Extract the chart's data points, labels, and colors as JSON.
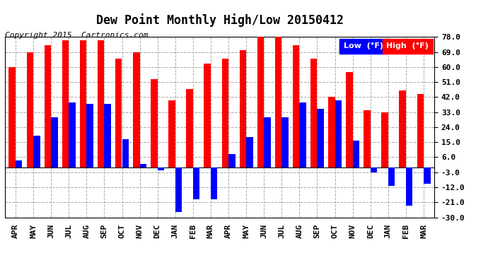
{
  "title": "Dew Point Monthly High/Low 20150412",
  "copyright": "Copyright 2015  Cartronics.com",
  "months": [
    "APR",
    "MAY",
    "JUN",
    "JUL",
    "AUG",
    "SEP",
    "OCT",
    "NOV",
    "DEC",
    "JAN",
    "FEB",
    "MAR",
    "APR",
    "MAY",
    "JUN",
    "JUL",
    "AUG",
    "SEP",
    "OCT",
    "NOV",
    "DEC",
    "JAN",
    "FEB",
    "MAR"
  ],
  "high": [
    60,
    69,
    73,
    76,
    76,
    76,
    65,
    69,
    53,
    40,
    47,
    62,
    65,
    70,
    78,
    78,
    73,
    65,
    42,
    57,
    34,
    33,
    46,
    44
  ],
  "low": [
    4,
    19,
    30,
    39,
    38,
    38,
    17,
    2,
    -2,
    -27,
    -19,
    -19,
    8,
    18,
    30,
    30,
    39,
    35,
    40,
    16,
    -3,
    -11,
    -23,
    -10
  ],
  "ylim": [
    -30,
    78
  ],
  "yticks": [
    -30,
    -21,
    -12,
    -3,
    6,
    15,
    24,
    33,
    42,
    51,
    60,
    69,
    78
  ],
  "bar_width": 0.38,
  "high_color": "#ff0000",
  "low_color": "#0000ff",
  "bg_color": "#ffffff",
  "grid_color": "#aaaaaa",
  "title_fontsize": 12,
  "axis_fontsize": 8,
  "copyright_fontsize": 8
}
